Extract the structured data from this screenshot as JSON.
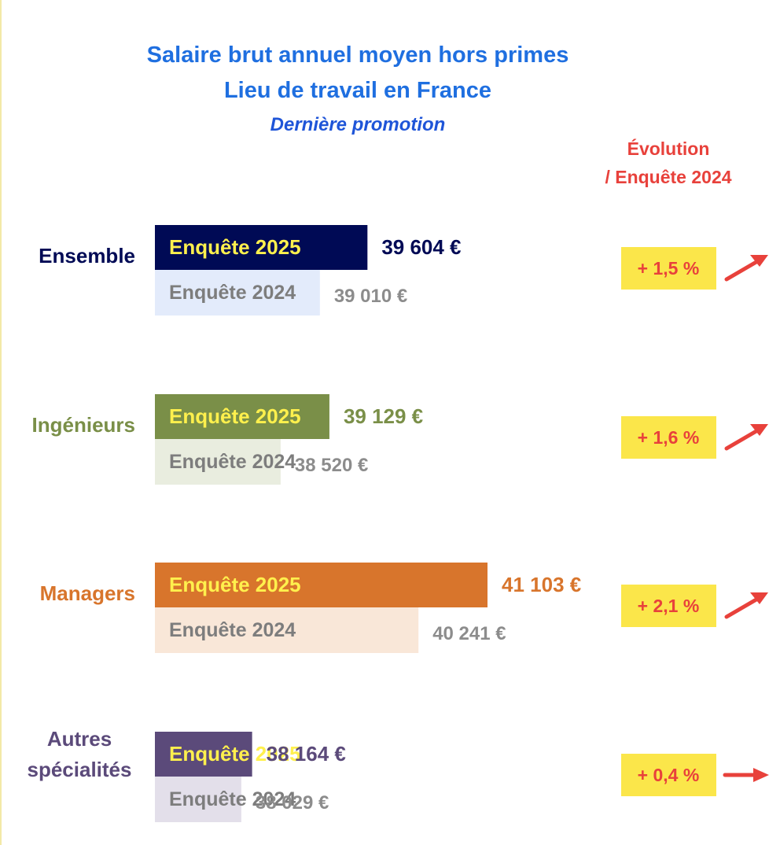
{
  "title": "Salaire brut annuel moyen hors primes",
  "subtitle": "Lieu de travail en France",
  "subtitle2": "Dernière promotion",
  "evolution_header": {
    "line1": "Évolution",
    "line2": "/ Enquête 2024"
  },
  "colors": {
    "title": "#1f6fe0",
    "evolution": "#e8413b",
    "badge": "#fbe64a",
    "arrow": "#e8413b",
    "prev_value_text": "#8c8c8c",
    "prev_label_text": "#7d7d7d"
  },
  "chart_data": {
    "type": "bar",
    "orientation": "horizontal",
    "unit": "€",
    "categories": [
      "Ensemble",
      "Ingénieurs",
      "Managers",
      "Autres spécialités"
    ],
    "category_lines": [
      [
        "Ensemble"
      ],
      [
        "Ingénieurs"
      ],
      [
        "Managers"
      ],
      [
        "Autres",
        "spécialités"
      ]
    ],
    "series": [
      {
        "name": "Enquête 2025",
        "values": [
          39604,
          39129,
          41103,
          38164
        ],
        "labels": [
          "39 604 €",
          "39 129 €",
          "41 103 €",
          "38 164 €"
        ],
        "colors": [
          "#000a55",
          "#7a8f48",
          "#d8752c",
          "#5b4a7a"
        ],
        "label_color": "#fff04d"
      },
      {
        "name": "Enquête 2024",
        "values": [
          39010,
          38520,
          40241,
          38029
        ],
        "labels": [
          "39 010 €",
          "38 520 €",
          "40 241 €",
          "38 029 €"
        ],
        "colors": [
          "#e3ebfb",
          "#e9eddf",
          "#f9e7d8",
          "#e3dfea"
        ]
      }
    ],
    "category_colors": [
      "#000a55",
      "#7a8f48",
      "#d8752c",
      "#5b4a7a"
    ],
    "evolution": [
      "+ 1,5 %",
      "+ 1,6 %",
      "+ 2,1 %",
      "+ 0,4 %"
    ],
    "arrow_direction": [
      "up",
      "up",
      "up",
      "right"
    ]
  }
}
